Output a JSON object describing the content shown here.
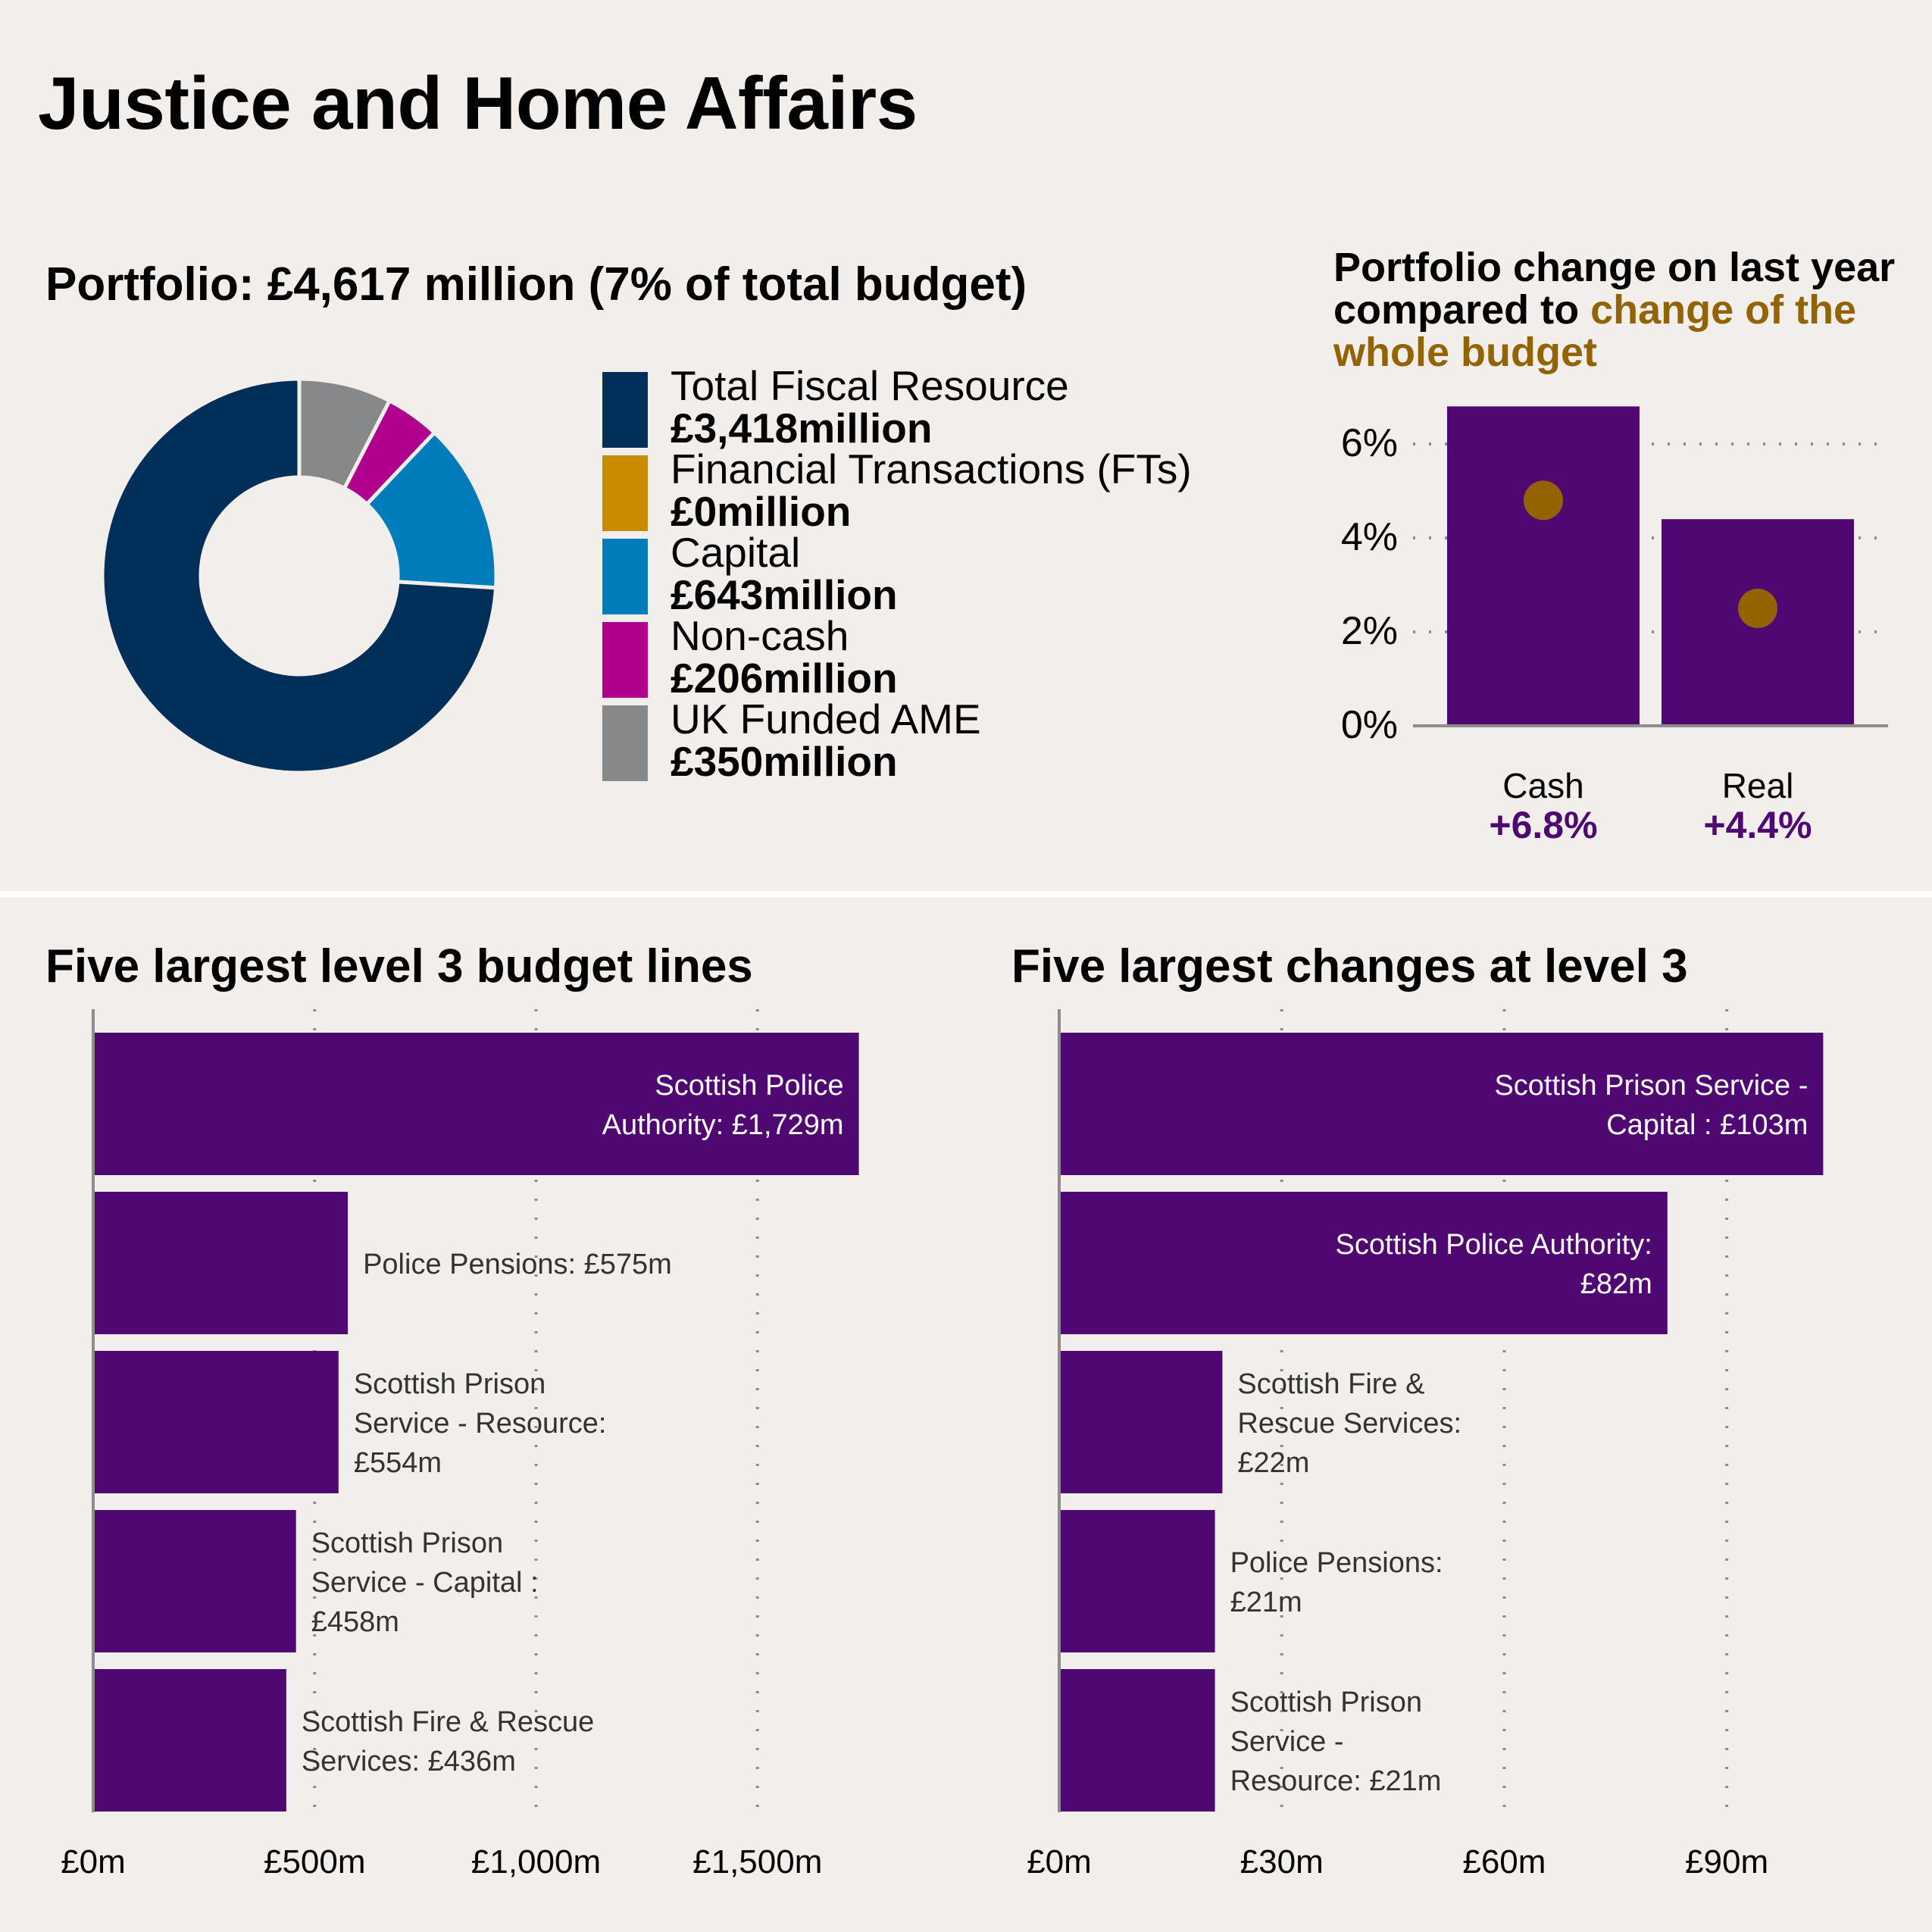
{
  "page": {
    "title": "Justice and Home Affairs",
    "background": "#f1eeeb"
  },
  "portfolio": {
    "title": "Portfolio: £4,617 million (7% of total budget)",
    "legend": [
      {
        "label": "Total Fiscal Resource",
        "value": "£3,418million",
        "color": "#002f5a"
      },
      {
        "label": "Financial Transactions (FTs)",
        "value": "£0million",
        "color": "#cb8b00"
      },
      {
        "label": "Capital",
        "value": "£643million",
        "color": "#007cbb"
      },
      {
        "label": "Non-cash",
        "value": "£206million",
        "color": "#ae008c"
      },
      {
        "label": "UK Funded AME",
        "value": "£350million",
        "color": "#86888a"
      }
    ]
  },
  "change": {
    "title_part1": "Portfolio change on last year compared to ",
    "title_part2": "change of the whole budget",
    "highlight_color": "#936300",
    "bar_color": "#4f0872",
    "categories": [
      {
        "label": "Cash",
        "value_label": "+6.8%"
      },
      {
        "label": "Real",
        "value_label": "+4.4%"
      }
    ],
    "y_ticks": [
      "0%",
      "2%",
      "4%",
      "6%"
    ]
  },
  "left_chart": {
    "title": "Five largest level 3 budget lines",
    "x_ticks": [
      "£0m",
      "£500m",
      "£1,000m",
      "£1,500m"
    ],
    "bars": [
      {
        "label_lines": [
          "Scottish Police",
          "Authority: £1,729m"
        ],
        "value": 1729,
        "inside": true
      },
      {
        "label_lines": [
          "Police Pensions: £575m"
        ],
        "value": 575,
        "inside": false
      },
      {
        "label_lines": [
          "Scottish Prison",
          "Service - Resource:",
          "£554m"
        ],
        "value": 554,
        "inside": false
      },
      {
        "label_lines": [
          "Scottish Prison",
          "Service - Capital :",
          "£458m"
        ],
        "value": 458,
        "inside": false
      },
      {
        "label_lines": [
          "Scottish Fire & Rescue",
          "Services: £436m"
        ],
        "value": 436,
        "inside": false
      }
    ]
  },
  "right_chart": {
    "title": "Five largest changes at level 3",
    "x_ticks": [
      "£0m",
      "£30m",
      "£60m",
      "£90m"
    ],
    "bars": [
      {
        "label_lines": [
          "Scottish Prison Service -",
          "Capital : £103m"
        ],
        "value": 103,
        "inside": true
      },
      {
        "label_lines": [
          "Scottish Police Authority:",
          "£82m"
        ],
        "value": 82,
        "inside": true
      },
      {
        "label_lines": [
          "Scottish Fire &",
          "Rescue Services:",
          "£22m"
        ],
        "value": 22,
        "inside": false
      },
      {
        "label_lines": [
          "Police Pensions:",
          "£21m"
        ],
        "value": 21,
        "inside": false
      },
      {
        "label_lines": [
          "Scottish Prison",
          "Service -",
          "Resource: £21m"
        ],
        "value": 21,
        "inside": false
      }
    ]
  },
  "chart_data": [
    {
      "type": "pie",
      "title": "Portfolio: £4,617 million (7% of total budget)",
      "donut": true,
      "categories": [
        "Total Fiscal Resource",
        "Financial Transactions (FTs)",
        "Capital",
        "Non-cash",
        "UK Funded AME"
      ],
      "values": [
        3418,
        0,
        643,
        206,
        350
      ],
      "units": "£ million",
      "colors": [
        "#002f5a",
        "#cb8b00",
        "#007cbb",
        "#ae008c",
        "#86888a"
      ],
      "legend_position": "right"
    },
    {
      "type": "bar",
      "title": "Portfolio change on last year compared to change of the whole budget",
      "categories": [
        "Cash",
        "Real"
      ],
      "series": [
        {
          "name": "Portfolio change",
          "values": [
            6.8,
            4.4
          ],
          "color": "#4f0872"
        },
        {
          "name": "Change of the whole budget",
          "values": [
            4.8,
            2.5
          ],
          "color": "#936300",
          "marker": "dot"
        }
      ],
      "ylabel": "",
      "xlabel": "",
      "y_ticks": [
        "0%",
        "2%",
        "4%",
        "6%"
      ],
      "ylim": [
        0,
        7
      ],
      "grid": "dotted horizontal"
    },
    {
      "type": "bar",
      "orientation": "horizontal",
      "title": "Five largest level 3 budget lines",
      "categories": [
        "Scottish Police Authority",
        "Police Pensions",
        "Scottish Prison Service - Resource",
        "Scottish Prison Service - Capital",
        "Scottish Fire & Rescue Services"
      ],
      "values": [
        1729,
        575,
        554,
        458,
        436
      ],
      "units": "£m",
      "x_ticks": [
        "£0m",
        "£500m",
        "£1,000m",
        "£1,500m"
      ],
      "xlim": [
        0,
        1800
      ],
      "grid": "dotted vertical"
    },
    {
      "type": "bar",
      "orientation": "horizontal",
      "title": "Five largest changes at level 3",
      "categories": [
        "Scottish Prison Service - Capital",
        "Scottish Police Authority",
        "Scottish Fire & Rescue Services",
        "Police Pensions",
        "Scottish Prison Service - Resource"
      ],
      "values": [
        103,
        82,
        22,
        21,
        21
      ],
      "units": "£m",
      "x_ticks": [
        "£0m",
        "£30m",
        "£60m",
        "£90m"
      ],
      "xlim": [
        0,
        112
      ],
      "grid": "dotted vertical"
    }
  ]
}
